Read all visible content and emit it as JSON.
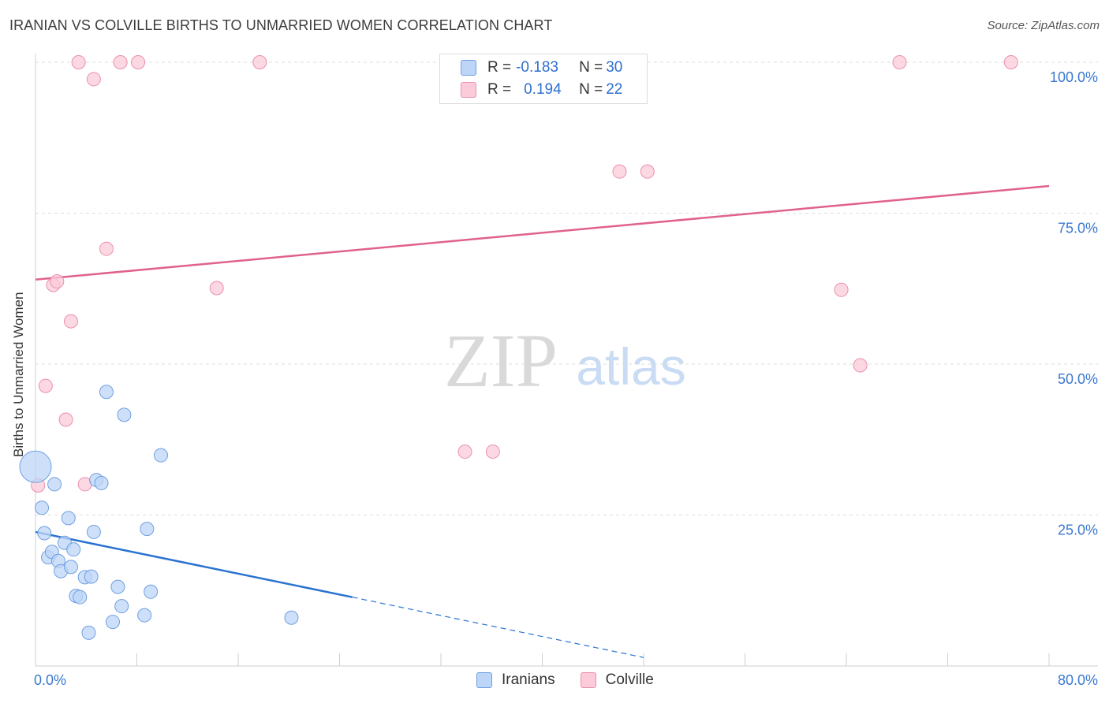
{
  "header": {
    "title": "IRANIAN VS COLVILLE BIRTHS TO UNMARRIED WOMEN CORRELATION CHART",
    "source": "Source: ZipAtlas.com"
  },
  "watermark": {
    "zip": "ZIP",
    "atlas": "atlas"
  },
  "legend": {
    "iranians": {
      "r_label": "R = ",
      "r": "-0.183",
      "n_label": "N = ",
      "n": "30"
    },
    "colville": {
      "r_label": "R = ",
      "r": "0.194",
      "n_label": "N = ",
      "n": "22"
    }
  },
  "bottom_legend": {
    "iranians": "Iranians",
    "colville": "Colville"
  },
  "colors": {
    "blue": "#6fa0e0",
    "blue_fill": "#bdd6f7",
    "blue_line": "#2a72d0",
    "pink": "#eb8fae",
    "pink_fill": "#fbcbd9",
    "pink_line": "#e0628c",
    "axis_label": "#3a78d0"
  },
  "chart_data": {
    "type": "scatter",
    "title": "IRANIAN VS COLVILLE BIRTHS TO UNMARRIED WOMEN CORRELATION CHART",
    "xlabel": "",
    "ylabel": "Births to Unmarried Women",
    "xlim": [
      0,
      80
    ],
    "ylim": [
      0,
      100
    ],
    "x_tick_labels": [
      "0.0%",
      "80.0%"
    ],
    "y_ticks": [
      25,
      50,
      75,
      100
    ],
    "y_tick_labels": [
      "25.0%",
      "50.0%",
      "75.0%",
      "100.0%"
    ],
    "series": [
      {
        "name": "Iranians",
        "r": -0.183,
        "n": 30,
        "trend": {
          "x0": 0,
          "y0": 22.2,
          "x1": 25,
          "y1": 11.4,
          "dashed_to_x": 48,
          "dashed_to_y": 1.4
        },
        "points": [
          {
            "x": 0.0,
            "y": 33.0,
            "big": true
          },
          {
            "x": 0.5,
            "y": 26.2
          },
          {
            "x": 0.7,
            "y": 22.0
          },
          {
            "x": 1.0,
            "y": 18.0
          },
          {
            "x": 1.3,
            "y": 18.9
          },
          {
            "x": 1.5,
            "y": 30.1
          },
          {
            "x": 1.8,
            "y": 17.4
          },
          {
            "x": 2.0,
            "y": 15.7
          },
          {
            "x": 2.3,
            "y": 20.4
          },
          {
            "x": 2.6,
            "y": 24.5
          },
          {
            "x": 2.8,
            "y": 16.4
          },
          {
            "x": 3.0,
            "y": 19.3
          },
          {
            "x": 3.2,
            "y": 11.6
          },
          {
            "x": 3.5,
            "y": 11.4
          },
          {
            "x": 3.9,
            "y": 14.7
          },
          {
            "x": 4.2,
            "y": 5.5
          },
          {
            "x": 4.4,
            "y": 14.8
          },
          {
            "x": 4.6,
            "y": 22.2
          },
          {
            "x": 4.8,
            "y": 30.8
          },
          {
            "x": 5.2,
            "y": 30.3
          },
          {
            "x": 5.6,
            "y": 45.4
          },
          {
            "x": 6.1,
            "y": 7.3
          },
          {
            "x": 6.5,
            "y": 13.1
          },
          {
            "x": 6.8,
            "y": 9.9
          },
          {
            "x": 7.0,
            "y": 41.6
          },
          {
            "x": 8.6,
            "y": 8.4
          },
          {
            "x": 8.8,
            "y": 22.7
          },
          {
            "x": 9.1,
            "y": 12.3
          },
          {
            "x": 9.9,
            "y": 34.9
          },
          {
            "x": 20.2,
            "y": 8.0
          }
        ]
      },
      {
        "name": "Colville",
        "r": 0.194,
        "n": 22,
        "trend": {
          "x0": 0,
          "y0": 64.0,
          "x1": 80,
          "y1": 79.5
        },
        "points": [
          {
            "x": 0.2,
            "y": 29.9
          },
          {
            "x": 0.8,
            "y": 46.4
          },
          {
            "x": 1.4,
            "y": 63.1
          },
          {
            "x": 1.7,
            "y": 63.7
          },
          {
            "x": 2.4,
            "y": 40.8
          },
          {
            "x": 2.8,
            "y": 57.1
          },
          {
            "x": 3.4,
            "y": 100.0
          },
          {
            "x": 3.9,
            "y": 30.1
          },
          {
            "x": 4.6,
            "y": 97.2
          },
          {
            "x": 5.6,
            "y": 69.1
          },
          {
            "x": 6.7,
            "y": 100.0
          },
          {
            "x": 8.1,
            "y": 100.0
          },
          {
            "x": 14.3,
            "y": 62.6
          },
          {
            "x": 17.7,
            "y": 100.0
          },
          {
            "x": 33.9,
            "y": 35.5
          },
          {
            "x": 36.1,
            "y": 35.5
          },
          {
            "x": 46.1,
            "y": 81.9
          },
          {
            "x": 48.3,
            "y": 81.9
          },
          {
            "x": 63.6,
            "y": 62.3
          },
          {
            "x": 65.1,
            "y": 49.8
          },
          {
            "x": 68.2,
            "y": 100.0
          },
          {
            "x": 77.0,
            "y": 100.0
          }
        ]
      }
    ]
  }
}
